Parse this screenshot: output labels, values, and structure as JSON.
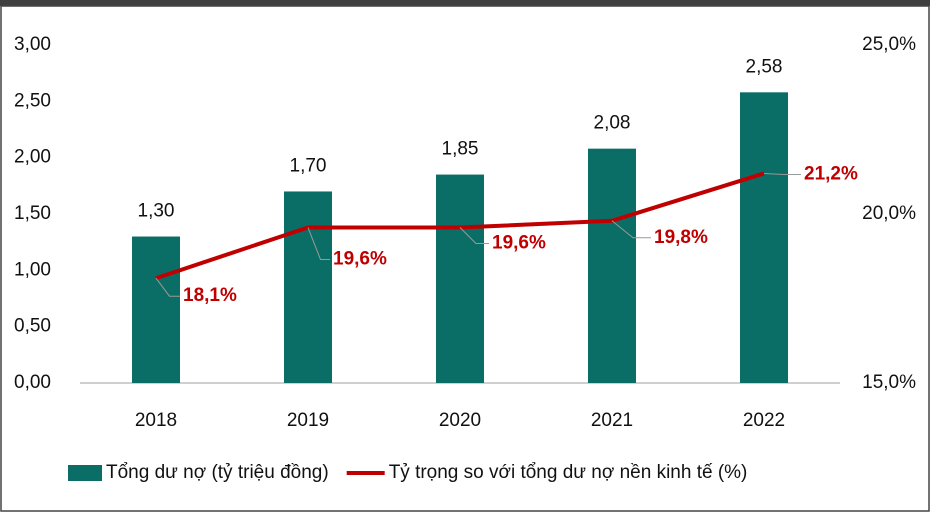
{
  "chart_data": {
    "type": "bar",
    "categories": [
      "2018",
      "2019",
      "2020",
      "2021",
      "2022"
    ],
    "series": [
      {
        "name": "Tổng dư nợ (tỷ triệu đồng)",
        "type": "bar",
        "color": "#0b6e66",
        "values": [
          1.3,
          1.7,
          1.85,
          2.08,
          2.58
        ],
        "value_labels": [
          "1,30",
          "1,70",
          "1,85",
          "2,08",
          "2,58"
        ]
      },
      {
        "name": "Tỷ trọng so với tổng dư nợ nền kinh tế (%)",
        "type": "line",
        "axis": "y2",
        "color": "#c00000",
        "values": [
          18.1,
          19.6,
          19.6,
          19.8,
          21.2
        ],
        "value_labels": [
          "18,1%",
          "19,6%",
          "19,6%",
          "19,8%",
          "21,2%"
        ]
      }
    ],
    "ylim": [
      0,
      3
    ],
    "yticks": [
      {
        "value": 0,
        "label": "0,00"
      },
      {
        "value": 0.5,
        "label": "0,50"
      },
      {
        "value": 1,
        "label": "1,00"
      },
      {
        "value": 1.5,
        "label": "1,50"
      },
      {
        "value": 2,
        "label": "2,00"
      },
      {
        "value": 2.5,
        "label": "2,50"
      },
      {
        "value": 3,
        "label": "3,00"
      }
    ],
    "y2lim": [
      15,
      25
    ],
    "y2ticks": [
      {
        "value": 15,
        "label": "15,0%"
      },
      {
        "value": 20,
        "label": "20,0%"
      },
      {
        "value": 25,
        "label": "25,0%"
      }
    ],
    "grid": false
  }
}
